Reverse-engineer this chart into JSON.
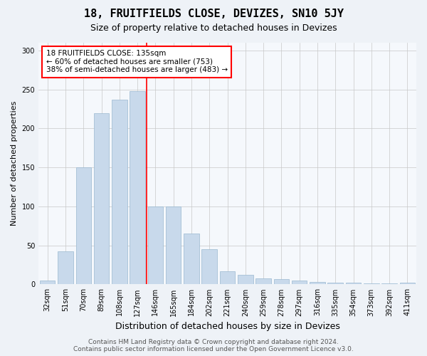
{
  "title": "18, FRUITFIELDS CLOSE, DEVIZES, SN10 5JY",
  "subtitle": "Size of property relative to detached houses in Devizes",
  "xlabel": "Distribution of detached houses by size in Devizes",
  "ylabel": "Number of detached properties",
  "categories": [
    "32sqm",
    "51sqm",
    "70sqm",
    "89sqm",
    "108sqm",
    "127sqm",
    "146sqm",
    "165sqm",
    "184sqm",
    "202sqm",
    "221sqm",
    "240sqm",
    "259sqm",
    "278sqm",
    "297sqm",
    "316sqm",
    "335sqm",
    "354sqm",
    "373sqm",
    "392sqm",
    "411sqm"
  ],
  "values": [
    5,
    42,
    150,
    220,
    237,
    248,
    100,
    100,
    65,
    45,
    17,
    12,
    8,
    7,
    5,
    3,
    2,
    2,
    1,
    1,
    2
  ],
  "bar_color": "#c8d9eb",
  "bar_edge_color": "#9ab8d0",
  "annotation_text": "18 FRUITFIELDS CLOSE: 135sqm\n← 60% of detached houses are smaller (753)\n38% of semi-detached houses are larger (483) →",
  "annotation_box_color": "white",
  "annotation_box_edge_color": "red",
  "vline_color": "red",
  "vline_x": 5.5,
  "ylim": [
    0,
    310
  ],
  "yticks": [
    0,
    50,
    100,
    150,
    200,
    250,
    300
  ],
  "footer": "Contains HM Land Registry data © Crown copyright and database right 2024.\nContains public sector information licensed under the Open Government Licence v3.0.",
  "background_color": "#eef2f7",
  "plot_background_color": "#f5f8fc",
  "title_fontsize": 11,
  "subtitle_fontsize": 9,
  "tick_fontsize": 7,
  "ylabel_fontsize": 8,
  "xlabel_fontsize": 9,
  "footer_fontsize": 6.5,
  "annotation_fontsize": 7.5
}
